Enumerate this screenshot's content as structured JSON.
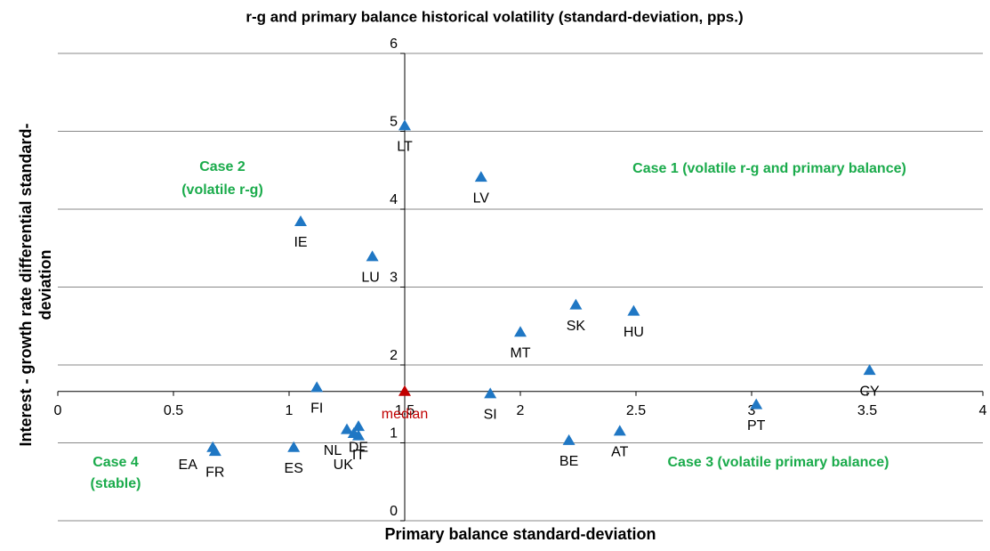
{
  "chart_data": {
    "type": "scatter",
    "title": "r-g and primary balance historical volatility (standard-deviation, pps.)",
    "xlabel": "Primary balance standard-deviation",
    "ylabel": [
      "Interest - growth rate differential standard-",
      "deviation"
    ],
    "xlim": [
      0,
      4
    ],
    "ylim": [
      0,
      6
    ],
    "xticks": [
      0,
      0.5,
      1,
      1.5,
      2,
      2.5,
      3,
      3.5,
      4
    ],
    "yticks": [
      0,
      1,
      2,
      3,
      4,
      5,
      6
    ],
    "grid": true,
    "axis_cross": {
      "x": 1.5,
      "y": 1.66
    },
    "series": [
      {
        "color": "#1f77c4",
        "labels": [
          "LT",
          "LV",
          "IE",
          "LU",
          "SK",
          "HU",
          "MT",
          "CY",
          "FI",
          "SI",
          "PT",
          "NL",
          "DE",
          "IT",
          "UK",
          "BE",
          "AT",
          "EA",
          "FR",
          "ES"
        ],
        "x": [
          1.5,
          1.83,
          1.05,
          1.36,
          2.24,
          2.49,
          2.0,
          3.51,
          1.12,
          1.87,
          3.02,
          1.25,
          1.3,
          1.3,
          1.28,
          2.21,
          2.43,
          0.67,
          0.68,
          1.02
        ],
        "values": [
          5.07,
          4.41,
          3.84,
          3.39,
          2.77,
          2.69,
          2.42,
          1.93,
          1.71,
          1.63,
          1.49,
          1.17,
          1.21,
          1.09,
          1.12,
          1.03,
          1.15,
          0.94,
          0.89,
          0.94
        ]
      },
      {
        "name": "median",
        "color": "#c00000",
        "x": [
          1.5
        ],
        "values": [
          1.66
        ]
      }
    ],
    "annotations": [
      "Case 1 (volatile r-g and primary balance)",
      "Case 2",
      "(volatile r-g)",
      "Case 3 (volatile primary balance)",
      "Case 4",
      "(stable)"
    ],
    "annotation_color": "#1aab4b"
  }
}
